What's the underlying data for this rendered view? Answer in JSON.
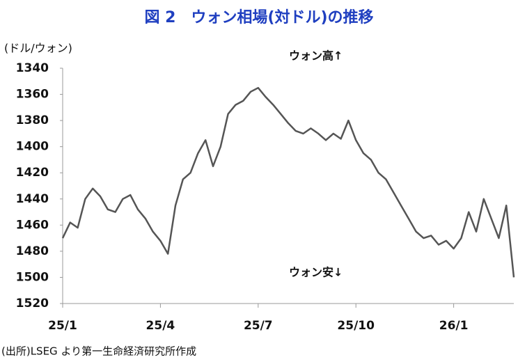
{
  "chart_data": {
    "type": "line",
    "title": "図 2　ウォン相場(対ドル)の推移",
    "y_axis_label": "(ドル/ウォン)",
    "annotations": [
      "ウォン高↑",
      "ウォン安↓"
    ],
    "source": "(出所)LSEG より第一生命経済研究所作成",
    "categories": [
      "25/1",
      null,
      null,
      null,
      null,
      null,
      null,
      null,
      null,
      null,
      null,
      null,
      null,
      "25/4",
      null,
      null,
      null,
      null,
      null,
      null,
      null,
      null,
      null,
      null,
      null,
      null,
      "25/7",
      null,
      null,
      null,
      null,
      null,
      null,
      null,
      null,
      null,
      null,
      null,
      null,
      "25/10",
      null,
      null,
      null,
      null,
      null,
      null,
      null,
      null,
      null,
      null,
      null,
      null,
      "26/1",
      null,
      null,
      null,
      null,
      null,
      null,
      null,
      null
    ],
    "values": [
      1470,
      1458,
      1462,
      1440,
      1432,
      1438,
      1448,
      1450,
      1440,
      1437,
      1448,
      1455,
      1465,
      1472,
      1482,
      1445,
      1425,
      1420,
      1405,
      1395,
      1415,
      1400,
      1375,
      1368,
      1365,
      1358,
      1355,
      1362,
      1368,
      1375,
      1382,
      1388,
      1390,
      1386,
      1390,
      1395,
      1390,
      1394,
      1380,
      1395,
      1405,
      1410,
      1420,
      1425,
      1435,
      1445,
      1455,
      1465,
      1470,
      1468,
      1475,
      1472,
      1478,
      1470,
      1450,
      1465,
      1440,
      1455,
      1470,
      1445,
      1500
    ],
    "color": "#555555",
    "ylim": [
      1340,
      1520
    ],
    "yticks": [
      1340,
      1360,
      1380,
      1400,
      1420,
      1440,
      1460,
      1480,
      1500,
      1520
    ],
    "y_inverted": true,
    "grid": false
  }
}
